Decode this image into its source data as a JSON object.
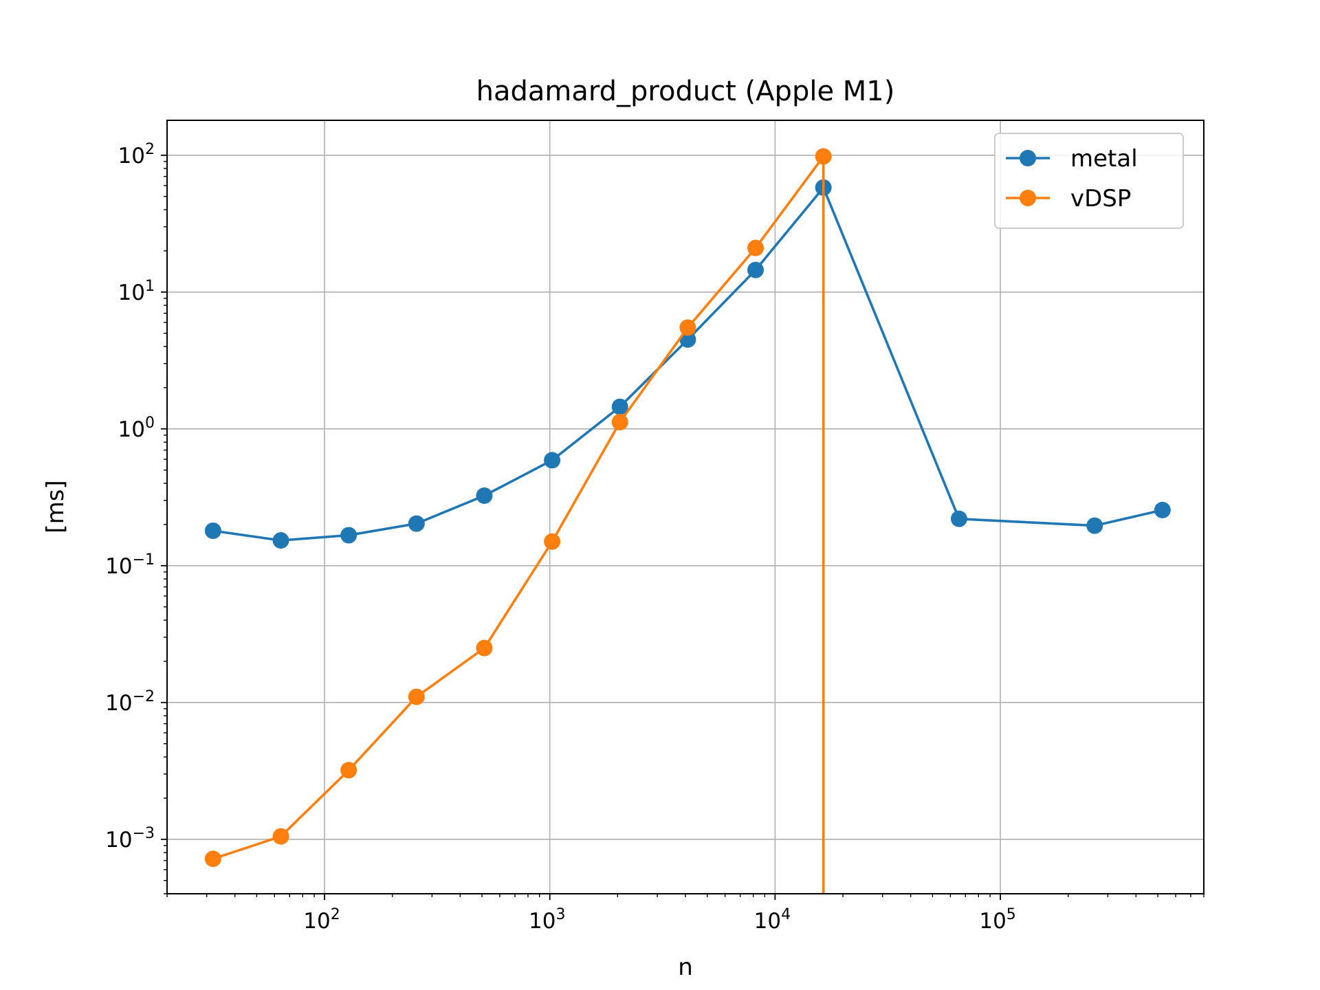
{
  "chart_data": {
    "type": "line",
    "title": "hadamard_product (Apple M1)",
    "xlabel": "n",
    "ylabel": "[ms]",
    "xscale": "log",
    "yscale": "log",
    "xlim": [
      20,
      800000
    ],
    "ylim": [
      0.0004,
      180
    ],
    "grid": true,
    "legend_position": "top-right",
    "x_ticks": [
      {
        "value": 100,
        "base": "10",
        "exp": "2"
      },
      {
        "value": 1000,
        "base": "10",
        "exp": "3"
      },
      {
        "value": 10000,
        "base": "10",
        "exp": "4"
      },
      {
        "value": 100000,
        "base": "10",
        "exp": "5"
      }
    ],
    "y_ticks": [
      {
        "value": 0.001,
        "base": "10",
        "exp": "−3"
      },
      {
        "value": 0.01,
        "base": "10",
        "exp": "−2"
      },
      {
        "value": 0.1,
        "base": "10",
        "exp": "−1"
      },
      {
        "value": 1,
        "base": "10",
        "exp": "0"
      },
      {
        "value": 10,
        "base": "10",
        "exp": "1"
      },
      {
        "value": 100,
        "base": "10",
        "exp": "2"
      }
    ],
    "series": [
      {
        "name": "metal",
        "color": "#1f77b4",
        "x": [
          32,
          64,
          128,
          256,
          512,
          1024,
          2048,
          4096,
          8192,
          16384,
          65536,
          262144,
          524288
        ],
        "y": [
          0.18,
          0.153,
          0.167,
          0.203,
          0.325,
          0.59,
          1.45,
          4.5,
          14.5,
          58,
          0.22,
          0.196,
          0.255
        ]
      },
      {
        "name": "vDSP",
        "color": "#ff7f0e",
        "x": [
          32,
          64,
          128,
          256,
          512,
          1024,
          2048,
          4096,
          8192,
          16384,
          16384
        ],
        "y": [
          0.00072,
          0.00105,
          0.0032,
          0.011,
          0.025,
          0.15,
          1.12,
          5.5,
          21,
          98,
          0.0004
        ]
      }
    ]
  }
}
